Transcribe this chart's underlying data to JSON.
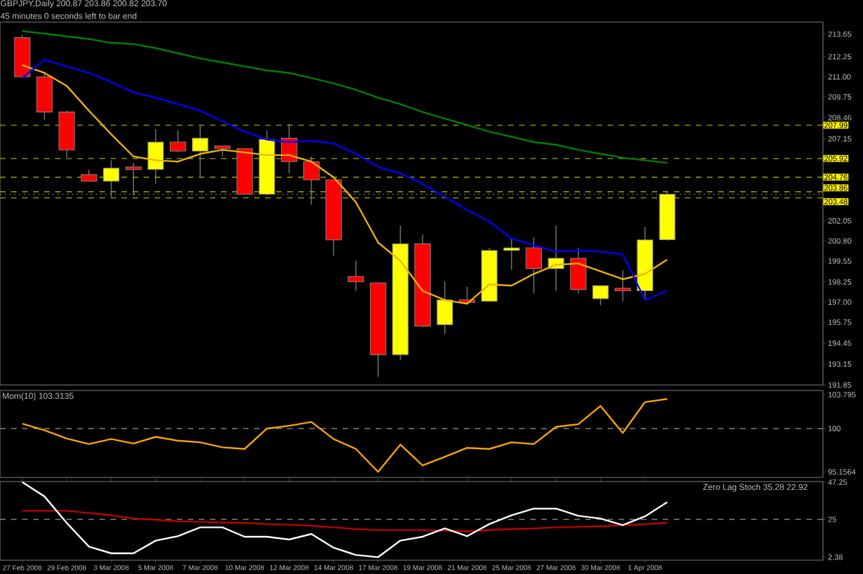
{
  "chart_data": [
    {
      "type": "candlestick",
      "title": "GBPJPY,Daily 200.87 203.86 200.82 203.70",
      "subtitle": "45 minutes 0 seconds left to bar end",
      "categories": [
        null,
        null,
        null,
        null,
        null,
        null,
        null,
        null,
        null,
        null,
        null,
        null,
        null,
        null,
        null,
        null,
        null,
        null,
        null,
        null,
        null,
        null,
        null,
        null,
        null,
        null,
        null,
        null,
        null,
        null
      ],
      "ohlc": [
        [
          213.43,
          213.59,
          210.92,
          211.0
        ],
        [
          211.0,
          211.32,
          208.32,
          208.81
        ],
        [
          208.81,
          208.89,
          205.97,
          206.46
        ],
        [
          204.92,
          205.24,
          204.51,
          204.51
        ],
        [
          204.51,
          205.81,
          203.54,
          205.32
        ],
        [
          205.4,
          205.65,
          203.62,
          205.24
        ],
        [
          205.24,
          207.75,
          204.35,
          206.94
        ],
        [
          206.94,
          207.67,
          206.3,
          206.38
        ],
        [
          206.38,
          208.0,
          204.76,
          207.19
        ],
        [
          206.7,
          206.7,
          206.05,
          206.54
        ],
        [
          206.54,
          206.54,
          203.7,
          203.7
        ],
        [
          203.7,
          207.67,
          203.62,
          207.11
        ],
        [
          207.19,
          208.08,
          205.0,
          205.73
        ],
        [
          205.73,
          206.05,
          203.05,
          204.59
        ],
        [
          204.59,
          204.59,
          199.89,
          200.86
        ],
        [
          198.59,
          199.57,
          197.7,
          198.27
        ],
        [
          198.19,
          198.19,
          192.35,
          193.73
        ],
        [
          193.73,
          201.75,
          193.4,
          200.62
        ],
        [
          200.62,
          201.19,
          195.43,
          195.51
        ],
        [
          195.59,
          198.27,
          195.02,
          197.13
        ],
        [
          197.13,
          197.94,
          196.89,
          196.97
        ],
        [
          197.05,
          200.37,
          197.05,
          200.21
        ],
        [
          200.21,
          200.94,
          199.0,
          200.37
        ],
        [
          200.37,
          201.02,
          197.54,
          199.08
        ],
        [
          199.08,
          201.75,
          197.7,
          199.73
        ],
        [
          199.73,
          200.37,
          197.54,
          197.78
        ],
        [
          197.21,
          198.02,
          196.81,
          198.02
        ],
        [
          197.86,
          199.0,
          197.05,
          197.7
        ],
        [
          197.7,
          201.67,
          197.13,
          200.86
        ],
        [
          200.87,
          203.86,
          200.82,
          203.7
        ]
      ],
      "colors": [
        "#ff0000",
        "#ff0000",
        "#ff0000",
        "#ff0000",
        "#ffff00",
        "#ff0000",
        "#ffff00",
        "#ff0000",
        "#ffff00",
        "#ff0000",
        "#ff0000",
        "#ffff00",
        "#ff0000",
        "#ff0000",
        "#ff0000",
        "#ff0000",
        "#ff0000",
        "#ffff00",
        "#ff0000",
        "#ffff00",
        "#ff0000",
        "#ffff00",
        "#ffff00",
        "#ff0000",
        "#ffff00",
        "#ff0000",
        "#ffff00",
        "#ff0000",
        "#ffff00",
        "#ffff00"
      ],
      "series": [
        {
          "type": "line",
          "color": "#f0b400",
          "values": [
            211.73,
            211.24,
            210.43,
            208.89,
            207.43,
            206.05,
            205.81,
            205.73,
            206.21,
            206.46,
            206.3,
            206.13,
            206.13,
            205.73,
            204.75,
            203.21,
            200.7,
            199.56,
            197.7,
            197.13,
            196.89,
            198.1,
            198.02,
            198.75,
            199.32,
            199.4,
            198.91,
            198.42,
            198.75,
            199.64
          ]
        },
        {
          "type": "line",
          "color": "#0000ff",
          "values": [
            210.92,
            212.05,
            211.65,
            211.24,
            210.67,
            210.03,
            209.7,
            209.3,
            208.89,
            208.24,
            207.59,
            207.1,
            206.94,
            207.02,
            206.86,
            206.21,
            205.4,
            205.0,
            204.35,
            203.54,
            202.73,
            202.0,
            200.94,
            200.54,
            200.13,
            200.21,
            200.13,
            199.97,
            197.13,
            197.7
          ]
        },
        {
          "type": "line",
          "color": "#008000",
          "values": [
            213.84,
            213.68,
            213.51,
            213.35,
            213.11,
            213.03,
            212.78,
            212.46,
            212.14,
            211.89,
            211.65,
            211.4,
            211.24,
            210.92,
            210.59,
            210.19,
            209.7,
            209.3,
            208.81,
            208.4,
            208.0,
            207.59,
            207.27,
            206.94,
            206.78,
            206.46,
            206.21,
            205.97,
            205.81,
            205.65
          ]
        }
      ],
      "ylim": [
        191.85,
        214.4
      ],
      "yticks": [
        213.65,
        212.25,
        {
          "value": 211.0,
          "label": "211.00"
        },
        209.75,
        208.46,
        207.15,
        202.05,
        {
          "value": 200.8,
          "label": "200.80"
        },
        199.55,
        198.25,
        {
          "value": 197.0,
          "label": "197.00"
        },
        195.75,
        194.45,
        193.15,
        191.85
      ],
      "ref_lines": [
        {
          "axis": "y",
          "value": 207.99,
          "label": "207.99",
          "color": "#8c8c00",
          "line_style": "dashed"
        },
        {
          "axis": "y",
          "value": 205.92,
          "label": "205.92",
          "color": "#8c8c00",
          "line_style": "dashed"
        },
        {
          "axis": "y",
          "value": 204.76,
          "label": "204.76",
          "color": "#8c8c00",
          "line_style": "dashed"
        },
        {
          "axis": "y",
          "value": 203.86,
          "label": "203.86",
          "color": "#8c8c00",
          "line_style": "dashed"
        },
        {
          "axis": "y",
          "value": 203.48,
          "label": "203.48",
          "color": "#8c8c00",
          "line_style": "dashed"
        },
        {
          "axis": "y",
          "value": 203.7,
          "color": "#808080",
          "line_style": "dotted"
        }
      ],
      "tick_labels": "y"
    },
    {
      "type": "line",
      "title": "Mom(10) 103.3135",
      "categories": [
        null,
        null,
        null,
        null,
        null,
        null,
        null,
        null,
        null,
        null,
        null,
        null,
        null,
        null,
        null,
        null,
        null,
        null,
        null,
        null,
        null,
        null,
        null,
        null,
        null,
        null,
        null,
        null,
        null,
        null
      ],
      "series": [
        {
          "color": "#ffa500",
          "values": [
            100.55,
            99.81,
            98.89,
            98.27,
            98.83,
            98.33,
            99.07,
            98.64,
            98.46,
            97.9,
            97.72,
            100.0,
            100.31,
            100.74,
            98.83,
            97.72,
            95.1564,
            98.21,
            95.87,
            96.85,
            97.84,
            97.72,
            98.46,
            98.27,
            100.19,
            100.49,
            102.53,
            99.51,
            102.96,
            103.3135
          ]
        }
      ],
      "ylim": [
        94.54,
        104.26
      ],
      "yticks": [
        103.795,
        100,
        95.1564
      ],
      "ref_lines": [
        {
          "axis": "y",
          "value": 100,
          "color": "#808080",
          "line_style": "dashed"
        }
      ],
      "tick_labels": "y"
    },
    {
      "type": "line",
      "title": "Zero Lag Stoch 35.28 22.92",
      "categories": [
        "27 Feb 2008",
        null,
        "29 Feb 2008",
        null,
        "3 Mar 2008",
        null,
        "5 Mar 2008",
        null,
        "7 Mar 2008",
        null,
        "10 Mar 2008",
        null,
        "12 Mar 2008",
        null,
        "14 Mar 2008",
        null,
        "17 Mar 2008",
        null,
        "19 Mar 2008",
        null,
        "21 Mar 2008",
        null,
        "25 Mar 2008",
        null,
        "27 Mar 2008",
        null,
        "30 Mar 2008",
        null,
        "1 Apr 2008",
        null
      ],
      "series": [
        {
          "color": "#c00000",
          "values": [
            30.09,
            30.09,
            30.09,
            28.77,
            27.45,
            25.47,
            24.81,
            23.82,
            23.49,
            23.16,
            22.84,
            22.18,
            21.85,
            21.19,
            20.2,
            19.21,
            18.55,
            18.55,
            18.55,
            18.22,
            17.89,
            18.55,
            19.21,
            19.54,
            20.2,
            20.53,
            20.86,
            21.52,
            22.18,
            22.92
          ]
        },
        {
          "color": "#ffffff",
          "values": [
            47.25,
            38.67,
            22.84,
            8.65,
            4.69,
            4.69,
            12.28,
            14.92,
            20.2,
            20.2,
            14.59,
            14.59,
            12.94,
            16.24,
            7.99,
            3.7,
            2.38,
            12.28,
            14.59,
            19.54,
            14.92,
            22.18,
            27.45,
            31.41,
            31.41,
            27.12,
            25.47,
            21.52,
            26.79,
            35.28
          ]
        }
      ],
      "ylim": [
        0.57,
        47.6
      ],
      "yticks": [
        47.25,
        25,
        2.38
      ],
      "ref_lines": [
        {
          "axis": "y",
          "value": 25,
          "color": "#808080",
          "line_style": "dashed"
        }
      ]
    }
  ]
}
